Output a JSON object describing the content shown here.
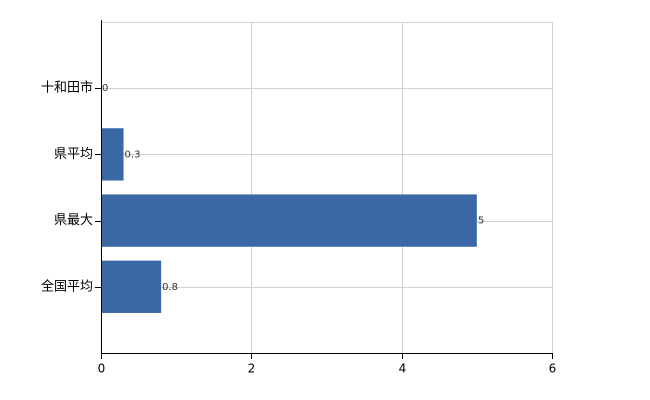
{
  "chart_data": {
    "type": "bar",
    "orientation": "horizontal",
    "categories": [
      "十和田市",
      "県平均",
      "県最大",
      "全国平均"
    ],
    "values": [
      0,
      0.3,
      5,
      0.8
    ],
    "color": "#3a68a5",
    "xlim": [
      0,
      6
    ],
    "xticks": [
      0,
      2,
      4,
      6
    ],
    "grid": true,
    "data_labels": true
  }
}
